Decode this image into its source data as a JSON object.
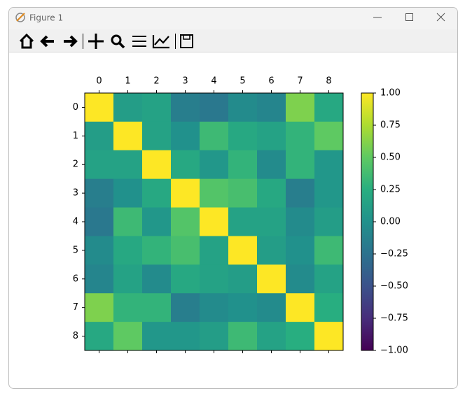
{
  "window": {
    "title": "Figure 1"
  },
  "chart_data": {
    "type": "heatmap",
    "x_categories": [
      "0",
      "1",
      "2",
      "3",
      "4",
      "5",
      "6",
      "7",
      "8"
    ],
    "y_categories": [
      "0",
      "1",
      "2",
      "3",
      "4",
      "5",
      "6",
      "7",
      "8"
    ],
    "values": [
      [
        1,
        0.1,
        0.15,
        -0.15,
        -0.2,
        -0.05,
        -0.1,
        0.6,
        0.2
      ],
      [
        0.1,
        1,
        0.15,
        0.0,
        0.35,
        0.2,
        0.15,
        0.3,
        0.5
      ],
      [
        0.15,
        0.15,
        1,
        0.2,
        0.05,
        0.3,
        -0.05,
        0.3,
        0.05
      ],
      [
        -0.15,
        0.0,
        0.2,
        1,
        0.45,
        0.4,
        0.2,
        -0.15,
        0.05
      ],
      [
        -0.2,
        0.35,
        0.05,
        0.45,
        1,
        0.15,
        0.15,
        -0.05,
        0.1
      ],
      [
        -0.05,
        0.2,
        0.3,
        0.4,
        0.15,
        1,
        0.1,
        0.0,
        0.35
      ],
      [
        -0.1,
        0.15,
        -0.05,
        0.2,
        0.15,
        0.1,
        1,
        -0.05,
        0.15
      ],
      [
        0.6,
        0.3,
        0.3,
        -0.15,
        -0.05,
        0.0,
        -0.05,
        1,
        0.25
      ],
      [
        0.2,
        0.5,
        0.05,
        0.05,
        0.1,
        0.35,
        0.15,
        0.25,
        1
      ]
    ],
    "colormap": "viridis",
    "clim": [
      -1,
      1
    ],
    "colorbar_ticks": [
      {
        "value": 1,
        "label": "1.00"
      },
      {
        "value": 0.75,
        "label": "0.75"
      },
      {
        "value": 0.5,
        "label": "0.50"
      },
      {
        "value": 0.25,
        "label": "0.25"
      },
      {
        "value": 0,
        "label": "0.00"
      },
      {
        "value": -0.25,
        "label": "−0.25"
      },
      {
        "value": -0.5,
        "label": "−0.50"
      },
      {
        "value": -0.75,
        "label": "−0.75"
      },
      {
        "value": -1,
        "label": "−1.00"
      }
    ]
  }
}
